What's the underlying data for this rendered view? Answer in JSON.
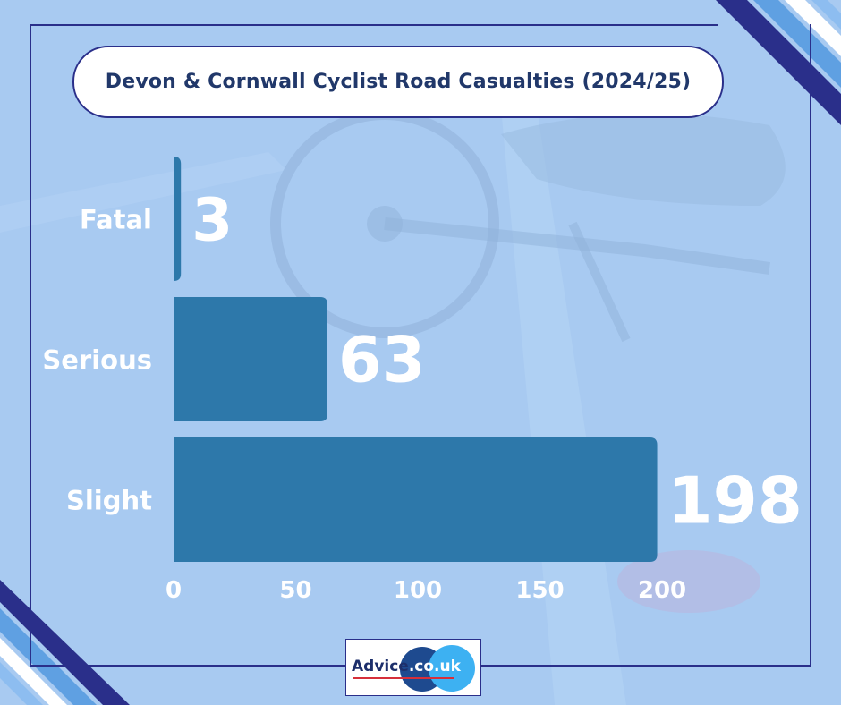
{
  "title": "Devon & Cornwall Cyclist Road Casualties (2024/25)",
  "chart_data": {
    "type": "bar",
    "orientation": "horizontal",
    "title": "Devon & Cornwall Cyclist Road Casualties (2024/25)",
    "categories": [
      "Fatal",
      "Serious",
      "Slight"
    ],
    "values": [
      3,
      63,
      198
    ],
    "value_labels": [
      "3",
      "63",
      "198"
    ],
    "xlim": [
      0,
      200
    ],
    "x_ticks": [
      "0",
      "50",
      "100",
      "150",
      "200"
    ],
    "xlabel": "",
    "ylabel": "",
    "grid": false,
    "legend": "none",
    "bar_color": "#2d78aa"
  },
  "logo": {
    "name": "Advice",
    "tld": ".co.uk"
  },
  "colors": {
    "frame": "#2a2f8a",
    "title_text": "#21386a",
    "label_text": "#ffffff"
  }
}
